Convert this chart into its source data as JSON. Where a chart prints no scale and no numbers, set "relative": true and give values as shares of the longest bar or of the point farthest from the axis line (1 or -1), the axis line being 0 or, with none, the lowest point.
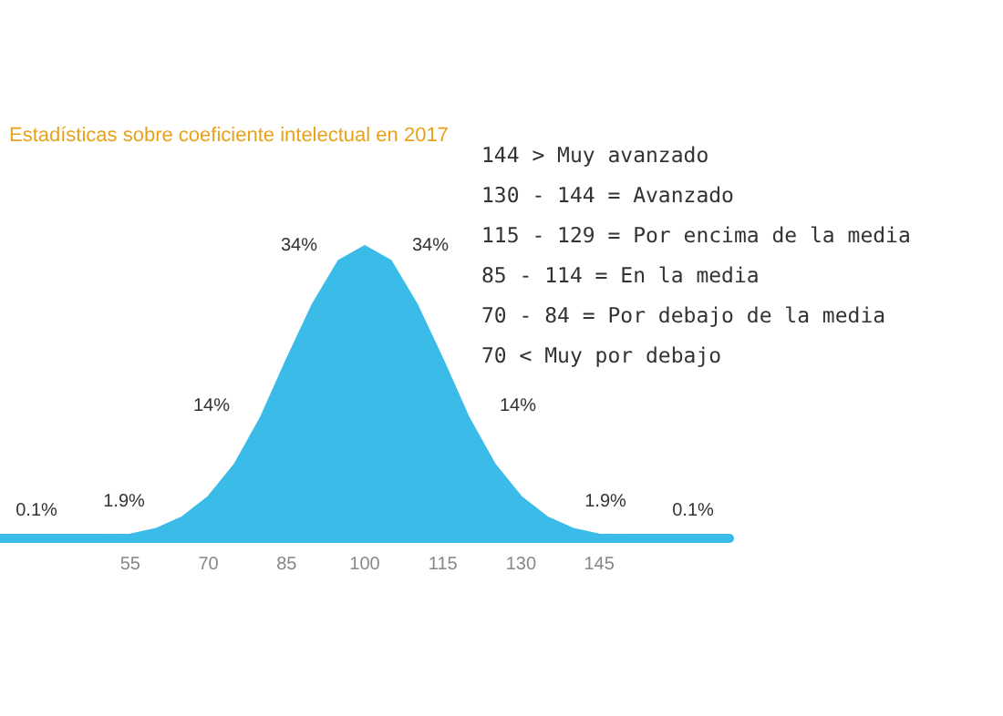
{
  "chart_data": {
    "type": "area",
    "title": "Estadísticas sobre coeficiente intelectual en 2017",
    "relative": true,
    "x": [
      30,
      35,
      40,
      45,
      50,
      55,
      60,
      65,
      70,
      75,
      80,
      85,
      90,
      95,
      100,
      105,
      110,
      115,
      120,
      125,
      130,
      135,
      140,
      145,
      150,
      155,
      160,
      165,
      170
    ],
    "series": [
      {
        "color": "#3bbbe8",
        "values": [
          0,
          0,
          0,
          0,
          0,
          0.01,
          0.03,
          0.07,
          0.14,
          0.25,
          0.41,
          0.61,
          0.8,
          0.95,
          1,
          0.95,
          0.8,
          0.61,
          0.41,
          0.25,
          0.14,
          0.07,
          0.03,
          0.01,
          0,
          0,
          0,
          0,
          0
        ]
      }
    ],
    "xlim": [
      30,
      170
    ],
    "xticks": [
      55,
      70,
      85,
      100,
      115,
      130,
      145
    ],
    "grid": false,
    "annotations": [
      "0.1%",
      "1.9%",
      "14%",
      "34%",
      "34%",
      "14%",
      "1.9%",
      "0.1%",
      "144 > Muy avanzado",
      "130 - 144 = Avanzado",
      "115 - 129 = Por encima de la media",
      "85 - 114 = En la media",
      "70 - 84 = Por debajo de la media",
      "70 < Muy por debajo"
    ]
  }
}
